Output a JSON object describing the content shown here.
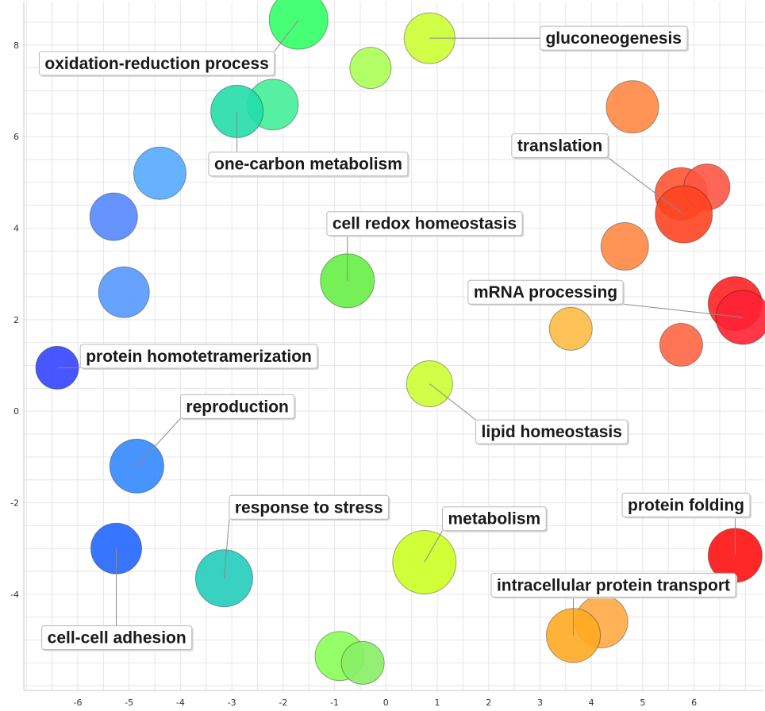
{
  "chart_data": {
    "type": "scatter",
    "title": "",
    "xlabel": "",
    "ylabel": "",
    "xlim": [
      -7.05,
      7.35
    ],
    "ylim": [
      -6.1,
      8.95
    ],
    "x_ticks": [
      -6,
      -5,
      -4,
      -3,
      -2,
      -1,
      0,
      1,
      2,
      3,
      4,
      5,
      6
    ],
    "y_ticks": [
      -4,
      -2,
      0,
      2,
      4,
      6,
      8
    ],
    "grid": true,
    "points": [
      {
        "x": -1.7,
        "y": 8.55,
        "r": 37,
        "color": "#33ff66"
      },
      {
        "x": 0.85,
        "y": 8.15,
        "r": 32,
        "color": "#ccff33"
      },
      {
        "x": -0.3,
        "y": 7.5,
        "r": 26,
        "color": "#aaff55"
      },
      {
        "x": -2.2,
        "y": 6.7,
        "r": 32,
        "color": "#44ee99"
      },
      {
        "x": -2.9,
        "y": 6.55,
        "r": 33,
        "color": "#22ddaa"
      },
      {
        "x": 4.8,
        "y": 6.65,
        "r": 33,
        "color": "#ff8844"
      },
      {
        "x": -4.4,
        "y": 5.2,
        "r": 33,
        "color": "#55aaff"
      },
      {
        "x": -5.3,
        "y": 4.25,
        "r": 30,
        "color": "#5588ff"
      },
      {
        "x": -5.1,
        "y": 2.6,
        "r": 32,
        "color": "#5599ff"
      },
      {
        "x": 5.75,
        "y": 4.75,
        "r": 33,
        "color": "#ff5533"
      },
      {
        "x": 6.25,
        "y": 4.9,
        "r": 29,
        "color": "#ff5544"
      },
      {
        "x": 5.8,
        "y": 4.3,
        "r": 36,
        "color": "#ff4422"
      },
      {
        "x": 4.65,
        "y": 3.6,
        "r": 30,
        "color": "#ff8844"
      },
      {
        "x": -0.75,
        "y": 2.85,
        "r": 34,
        "color": "#66ee44"
      },
      {
        "x": 6.8,
        "y": 2.35,
        "r": 34,
        "color": "#ff2222"
      },
      {
        "x": 6.95,
        "y": 2.05,
        "r": 34,
        "color": "#ff2233"
      },
      {
        "x": 3.6,
        "y": 1.8,
        "r": 27,
        "color": "#ffbb44"
      },
      {
        "x": 5.75,
        "y": 1.45,
        "r": 27,
        "color": "#ff6644"
      },
      {
        "x": -6.4,
        "y": 0.95,
        "r": 27,
        "color": "#3344ff"
      },
      {
        "x": 0.85,
        "y": 0.6,
        "r": 29,
        "color": "#ccff33"
      },
      {
        "x": -4.85,
        "y": -1.2,
        "r": 34,
        "color": "#3388ff"
      },
      {
        "x": -5.25,
        "y": -3.0,
        "r": 32,
        "color": "#2266ff"
      },
      {
        "x": -3.15,
        "y": -3.65,
        "r": 36,
        "color": "#22ccbb"
      },
      {
        "x": 0.75,
        "y": -3.3,
        "r": 40,
        "color": "#ccff22"
      },
      {
        "x": 6.8,
        "y": -3.15,
        "r": 34,
        "color": "#ff1111"
      },
      {
        "x": 4.2,
        "y": -4.6,
        "r": 33,
        "color": "#ffaa44"
      },
      {
        "x": 3.65,
        "y": -4.9,
        "r": 34,
        "color": "#ffaa22"
      },
      {
        "x": -0.9,
        "y": -5.35,
        "r": 31,
        "color": "#88ff55"
      },
      {
        "x": -0.45,
        "y": -5.5,
        "r": 27,
        "color": "#88ee66"
      }
    ],
    "annotations": [
      {
        "text": "oxidation-reduction process",
        "point": 0,
        "lx": -6.75,
        "ly": 7.6
      },
      {
        "text": "gluconeogenesis",
        "point": 1,
        "lx": 3.0,
        "ly": 8.15
      },
      {
        "text": "one-carbon metabolism",
        "point": 4,
        "lx": -3.45,
        "ly": 5.4
      },
      {
        "text": "translation",
        "point": 11,
        "lx": 2.45,
        "ly": 5.8
      },
      {
        "text": "cell redox homeostasis",
        "point": 13,
        "lx": -1.15,
        "ly": 4.1
      },
      {
        "text": "mRNA processing",
        "point": 15,
        "lx": 1.6,
        "ly": 2.6
      },
      {
        "text": "protein homotetramerization",
        "point": 18,
        "lx": -5.95,
        "ly": 1.2
      },
      {
        "text": "lipid homeostasis",
        "point": 19,
        "lx": 1.75,
        "ly": -0.45
      },
      {
        "text": "reproduction",
        "point": 20,
        "lx": -4.0,
        "ly": 0.1
      },
      {
        "text": "response to stress",
        "point": 22,
        "lx": -3.05,
        "ly": -2.1
      },
      {
        "text": "metabolism",
        "point": 23,
        "lx": 1.1,
        "ly": -2.35
      },
      {
        "text": "protein folding",
        "point": 24,
        "lx": 4.6,
        "ly": -2.05
      },
      {
        "text": "intracellular protein transport",
        "point": 26,
        "lx": 2.05,
        "ly": -3.8
      },
      {
        "text": "cell-cell adhesion",
        "point": 21,
        "lx": -6.7,
        "ly": -4.95
      }
    ]
  }
}
